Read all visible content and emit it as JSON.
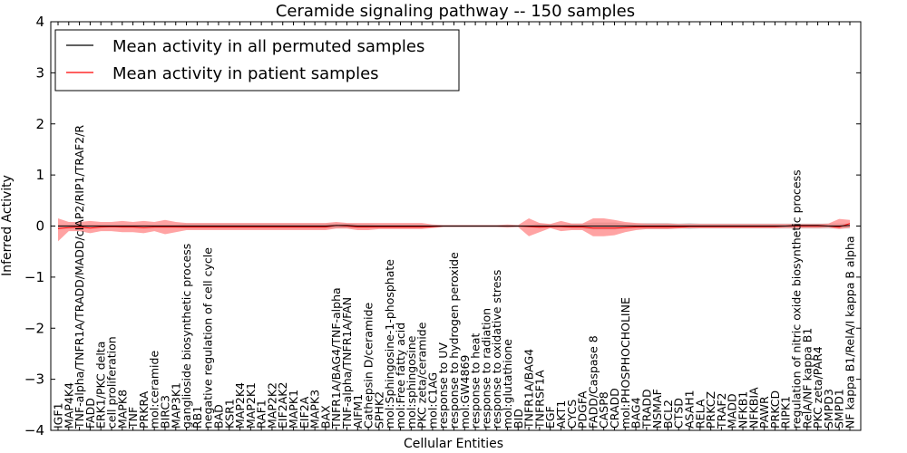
{
  "chart_data": {
    "type": "line",
    "title": "Ceramide signaling pathway -- 150 samples",
    "xlabel": "Cellular Entities",
    "ylabel": "Inferred Activity",
    "ylim": [
      -4,
      4
    ],
    "yticks": [
      -4,
      -3,
      -2,
      -1,
      0,
      1,
      2,
      3,
      4
    ],
    "legend_position": "top-left",
    "categories": [
      "IGF1",
      "MAP4K4",
      "TNF-alpha/TNFR1A/TRADD/MADD/cIAP2/RIP1/TRAF2/R",
      "FADD",
      "ERK1/PKC delta",
      "cell proliferation",
      "MAPK8",
      "TNF",
      "PRKRA",
      "mol:ceramide",
      "BIRC3",
      "MAP3K1",
      "ganglioside biosynthetic process",
      "RB1",
      "negative regulation of cell cycle",
      "BAD",
      "KSR1",
      "MAP2K4",
      "MAP2K1",
      "RAF1",
      "MAP2K2",
      "EIF2AK2",
      "MAPK1",
      "EIF2A",
      "MAPK3",
      "BAX",
      "TNFR1A/BAG4/TNF-alpha",
      "TNF-alpha/TNFR1A/FAN",
      "AIFM1",
      "Cathepsin D/ceramide",
      "SPHK2",
      "mol:Sphingosine-1-phosphate",
      "mol:Free fatty acid",
      "mol:sphingosine",
      "PKC zeta/ceramide",
      "mol:C1AG",
      "response to UV",
      "response to hydrogen peroxide",
      "mol:GW4869",
      "response to heat",
      "response to radiation",
      "response to oxidative stress",
      "mol:glutathione",
      "BID",
      "TNFR1A/BAG4",
      "TNFRSF1A",
      "EGF",
      "AKT1",
      "CYCS",
      "PDGFA",
      "FADD/Caspase 8",
      "CASP8",
      "CRADD",
      "mol:PHOSPHOCHOLINE",
      "BAG4",
      "TRADD",
      "NSMAF",
      "BCL2",
      "CTSD",
      "ASAH1",
      "RELA",
      "PRKCZ",
      "TRAF2",
      "MADD",
      "NFKB1",
      "NFKBIA",
      "PAWR",
      "PRKCD",
      "RIPK1",
      "regulation of nitric oxide biosynthetic process",
      "RelA/NF kappa B1",
      "PKC zeta/PAR4",
      "SMPD3",
      "SMPD1",
      "NF kappa B1/RelA/I kappa B alpha"
    ],
    "series": [
      {
        "name": "Mean activity in all permuted samples",
        "color": "#000000",
        "values": [
          0,
          0,
          0,
          0,
          0,
          0,
          0,
          0,
          0,
          0,
          0,
          0,
          0,
          0,
          0,
          0,
          0,
          0,
          0,
          0,
          0,
          0,
          0,
          0,
          0,
          0,
          0.01,
          0.01,
          0,
          0,
          0,
          0,
          0,
          0,
          0,
          0,
          0,
          0,
          0,
          0,
          0,
          0,
          0,
          0,
          0,
          0,
          0,
          0,
          0,
          0,
          0,
          0,
          0,
          0,
          0,
          0,
          0,
          0,
          0,
          0,
          0,
          0,
          0,
          0,
          0,
          0,
          0,
          0,
          0,
          0.01,
          0.01,
          0.01,
          0,
          0,
          0.01
        ],
        "band_lower": [
          -0.03,
          -0.03,
          -0.03,
          -0.03,
          -0.03,
          -0.03,
          -0.03,
          -0.03,
          -0.03,
          -0.03,
          -0.03,
          -0.03,
          -0.05,
          -0.05,
          -0.05,
          -0.05,
          -0.05,
          -0.05,
          -0.05,
          -0.05,
          -0.05,
          -0.05,
          -0.05,
          -0.05,
          -0.05,
          -0.05,
          -0.04,
          -0.04,
          -0.04,
          -0.04,
          -0.03,
          -0.03,
          -0.03,
          -0.03,
          -0.03,
          -0.02,
          -0.02,
          -0.02,
          -0.02,
          -0.02,
          -0.02,
          -0.02,
          -0.02,
          -0.02,
          -0.02,
          -0.05,
          -0.04,
          -0.03,
          -0.05,
          -0.05,
          -0.07,
          -0.07,
          -0.07,
          -0.05,
          -0.05,
          -0.06,
          -0.06,
          -0.06,
          -0.05,
          -0.06,
          -0.05,
          -0.05,
          -0.05,
          -0.05,
          -0.05,
          -0.05,
          -0.05,
          -0.05,
          -0.05,
          -0.05,
          -0.05,
          -0.05,
          -0.05,
          -0.05,
          -0.05
        ],
        "band_upper": [
          0.03,
          0.03,
          0.03,
          0.03,
          0.03,
          0.03,
          0.03,
          0.03,
          0.03,
          0.03,
          0.03,
          0.03,
          0.05,
          0.05,
          0.05,
          0.05,
          0.05,
          0.05,
          0.05,
          0.05,
          0.05,
          0.05,
          0.05,
          0.05,
          0.05,
          0.05,
          0.05,
          0.05,
          0.04,
          0.04,
          0.03,
          0.03,
          0.03,
          0.03,
          0.03,
          0.02,
          0.02,
          0.02,
          0.02,
          0.02,
          0.02,
          0.02,
          0.02,
          0.02,
          0.02,
          0.05,
          0.04,
          0.03,
          0.05,
          0.05,
          0.07,
          0.07,
          0.07,
          0.05,
          0.05,
          0.06,
          0.06,
          0.06,
          0.05,
          0.06,
          0.05,
          0.05,
          0.05,
          0.05,
          0.05,
          0.05,
          0.05,
          0.05,
          0.05,
          0.05,
          0.05,
          0.05,
          0.05,
          0.05,
          0.05
        ]
      },
      {
        "name": "Mean activity in patient samples",
        "color": "#ff0000",
        "values": [
          -0.05,
          -0.03,
          -0.02,
          -0.04,
          -0.02,
          -0.01,
          -0.02,
          -0.02,
          -0.03,
          -0.02,
          -0.02,
          -0.02,
          -0.02,
          -0.02,
          -0.02,
          -0.02,
          -0.02,
          -0.02,
          -0.02,
          -0.02,
          -0.02,
          -0.02,
          -0.02,
          -0.02,
          -0.02,
          -0.02,
          0.01,
          0,
          -0.02,
          -0.02,
          -0.02,
          -0.02,
          -0.02,
          -0.02,
          -0.02,
          -0.01,
          0,
          0,
          0,
          0,
          0,
          0,
          0,
          0,
          -0.01,
          -0.02,
          -0.01,
          -0.01,
          -0.02,
          -0.02,
          -0.04,
          -0.04,
          -0.04,
          -0.03,
          -0.02,
          -0.02,
          -0.02,
          -0.02,
          -0.02,
          -0.01,
          -0.01,
          -0.01,
          -0.01,
          -0.01,
          -0.01,
          -0.01,
          -0.01,
          -0.01,
          0,
          0,
          0,
          0,
          0,
          -0.02,
          0.05
        ],
        "band_lower": [
          -0.3,
          -0.1,
          -0.1,
          -0.14,
          -0.1,
          -0.1,
          -0.12,
          -0.12,
          -0.14,
          -0.1,
          -0.16,
          -0.12,
          -0.08,
          -0.08,
          -0.08,
          -0.08,
          -0.08,
          -0.08,
          -0.08,
          -0.08,
          -0.08,
          -0.08,
          -0.08,
          -0.08,
          -0.08,
          -0.08,
          -0.05,
          -0.05,
          -0.08,
          -0.08,
          -0.06,
          -0.06,
          -0.06,
          -0.06,
          -0.06,
          -0.04,
          -0.02,
          -0.02,
          -0.02,
          -0.02,
          -0.02,
          -0.02,
          -0.03,
          -0.02,
          -0.2,
          -0.12,
          -0.04,
          -0.1,
          -0.08,
          -0.08,
          -0.2,
          -0.2,
          -0.18,
          -0.12,
          -0.08,
          -0.06,
          -0.06,
          -0.06,
          -0.05,
          -0.04,
          -0.04,
          -0.04,
          -0.04,
          -0.04,
          -0.04,
          -0.04,
          -0.04,
          -0.04,
          -0.04,
          -0.04,
          -0.04,
          -0.04,
          -0.03,
          -0.06,
          -0.03
        ],
        "band_upper": [
          0.15,
          0.08,
          0.08,
          0.1,
          0.08,
          0.08,
          0.1,
          0.08,
          0.1,
          0.08,
          0.12,
          0.08,
          0.06,
          0.06,
          0.06,
          0.06,
          0.06,
          0.06,
          0.06,
          0.06,
          0.06,
          0.06,
          0.06,
          0.06,
          0.06,
          0.06,
          0.08,
          0.06,
          0.06,
          0.06,
          0.06,
          0.06,
          0.06,
          0.06,
          0.06,
          0.03,
          0.02,
          0.02,
          0.02,
          0.02,
          0.02,
          0.02,
          0.03,
          0.02,
          0.15,
          0.06,
          0.04,
          0.1,
          0.05,
          0.05,
          0.15,
          0.15,
          0.12,
          0.08,
          0.06,
          0.05,
          0.05,
          0.05,
          0.04,
          0.04,
          0.04,
          0.04,
          0.04,
          0.04,
          0.04,
          0.04,
          0.04,
          0.04,
          0.04,
          0.04,
          0.04,
          0.04,
          0.05,
          0.14,
          0.12
        ]
      }
    ]
  }
}
